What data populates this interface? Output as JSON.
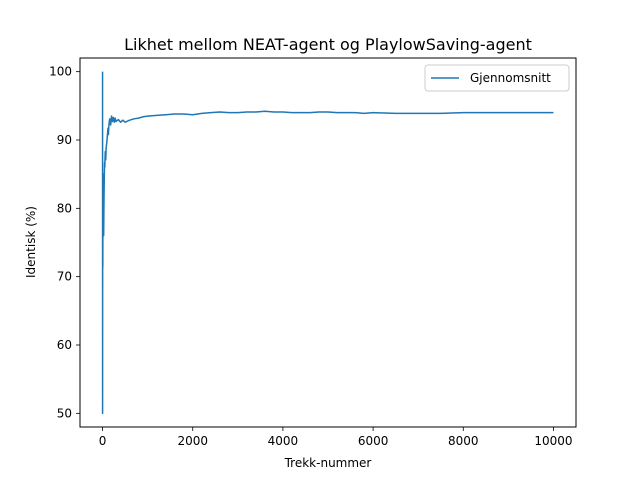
{
  "chart_data": {
    "type": "line",
    "title": "Likhet mellom NEAT-agent og PlaylowSaving-agent",
    "xlabel": "Trekk-nummer",
    "ylabel": "Identisk (%)",
    "xlim": [
      -500,
      10500
    ],
    "ylim": [
      48,
      102
    ],
    "xticks": [
      0,
      2000,
      4000,
      6000,
      8000,
      10000
    ],
    "yticks": [
      50,
      60,
      70,
      80,
      90,
      100
    ],
    "grid": false,
    "legend": "top-right",
    "series": [
      {
        "name": "Gjennomsnitt",
        "color": "#1f77b4",
        "x": [
          0,
          1,
          2,
          3,
          4,
          5,
          6,
          7,
          8,
          10,
          12,
          14,
          16,
          18,
          20,
          25,
          30,
          35,
          40,
          45,
          50,
          55,
          60,
          70,
          80,
          90,
          100,
          110,
          120,
          130,
          140,
          150,
          160,
          180,
          200,
          220,
          240,
          260,
          280,
          300,
          350,
          400,
          450,
          500,
          600,
          700,
          800,
          900,
          1000,
          1200,
          1400,
          1600,
          1800,
          2000,
          2200,
          2400,
          2600,
          2800,
          3000,
          3200,
          3400,
          3600,
          3800,
          4000,
          4200,
          4400,
          4600,
          4800,
          5000,
          5200,
          5400,
          5600,
          5800,
          6000,
          6500,
          7000,
          7500,
          8000,
          8500,
          9000,
          9500,
          10000
        ],
        "y": [
          100,
          50,
          66.7,
          75,
          80,
          83.3,
          71.4,
          75,
          77.8,
          80,
          83.3,
          78.6,
          81.3,
          83.3,
          85,
          76,
          80,
          82.9,
          85,
          86.7,
          86,
          87.3,
          88.3,
          87.1,
          88.8,
          89.4,
          90,
          90.9,
          91.7,
          90.8,
          92.1,
          92.7,
          93.1,
          92.2,
          93.5,
          92.7,
          93.3,
          92.6,
          93.2,
          92.7,
          93.0,
          92.6,
          92.9,
          92.6,
          92.9,
          93.1,
          93.2,
          93.4,
          93.5,
          93.6,
          93.7,
          93.8,
          93.8,
          93.7,
          93.9,
          94.0,
          94.1,
          94.0,
          94.0,
          94.1,
          94.1,
          94.2,
          94.1,
          94.1,
          94.0,
          94.0,
          94.0,
          94.1,
          94.1,
          94.0,
          94.0,
          94.0,
          93.9,
          94.0,
          93.9,
          93.9,
          93.9,
          94.0,
          94.0,
          94.0,
          94.0,
          94.0
        ]
      }
    ]
  }
}
